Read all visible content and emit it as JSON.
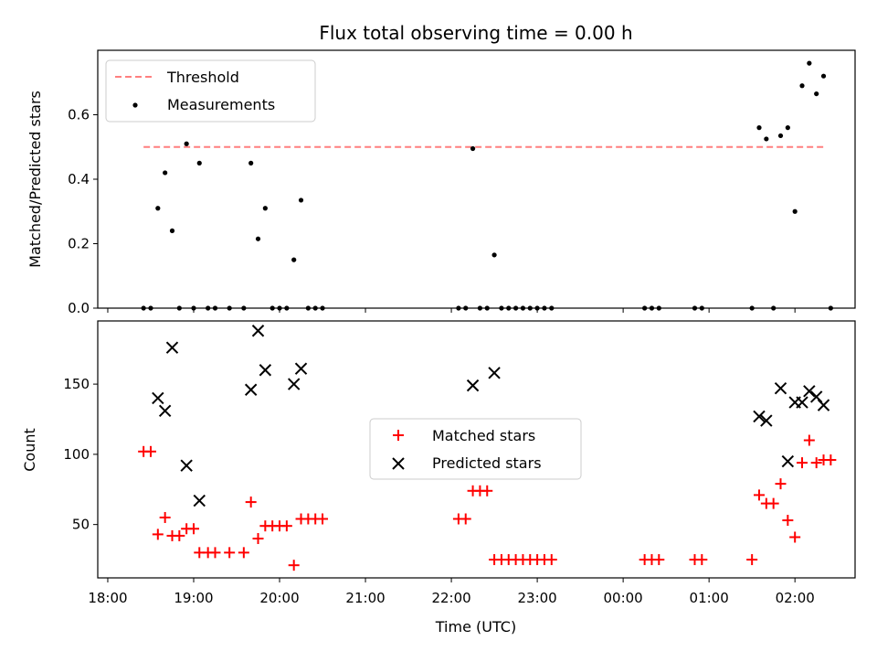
{
  "chart_data": [
    {
      "type": "scatter",
      "title": "Flux total observing time = 0.00 h",
      "xlabel": "",
      "ylabel": "Matched/Predicted stars",
      "ylim": [
        0,
        0.8
      ],
      "xlim": [
        "17:53",
        "02:42"
      ],
      "grid": false,
      "legend_position": "top-left",
      "yticks": [
        "0.0",
        "0.2",
        "0.4",
        "0.6"
      ],
      "threshold": {
        "name": "Threshold",
        "value": 0.5,
        "x_start": "18:25",
        "x_end": "02:20",
        "color": "#ff7f7f"
      },
      "series": [
        {
          "name": "Measurements",
          "color": "#000000",
          "points": [
            [
              "18:25",
              0
            ],
            [
              "18:30",
              0
            ],
            [
              "18:35",
              0.31
            ],
            [
              "18:40",
              0.42
            ],
            [
              "18:45",
              0.24
            ],
            [
              "18:50",
              0
            ],
            [
              "18:55",
              0.51
            ],
            [
              "19:00",
              0
            ],
            [
              "19:04",
              0.45
            ],
            [
              "19:10",
              0
            ],
            [
              "19:15",
              0
            ],
            [
              "19:25",
              0
            ],
            [
              "19:35",
              0
            ],
            [
              "19:40",
              0.45
            ],
            [
              "19:45",
              0.215
            ],
            [
              "19:50",
              0.31
            ],
            [
              "19:55",
              0
            ],
            [
              "20:00",
              0
            ],
            [
              "20:05",
              0
            ],
            [
              "20:10",
              0.15
            ],
            [
              "20:15",
              0.335
            ],
            [
              "20:20",
              0
            ],
            [
              "20:25",
              0
            ],
            [
              "20:30",
              0
            ],
            [
              "22:05",
              0
            ],
            [
              "22:10",
              0
            ],
            [
              "22:15",
              0.495
            ],
            [
              "22:20",
              0
            ],
            [
              "22:25",
              0
            ],
            [
              "22:30",
              0.165
            ],
            [
              "22:35",
              0
            ],
            [
              "22:40",
              0
            ],
            [
              "22:45",
              0
            ],
            [
              "22:50",
              0
            ],
            [
              "22:55",
              0
            ],
            [
              "23:00",
              0
            ],
            [
              "23:05",
              0
            ],
            [
              "23:10",
              0
            ],
            [
              "00:15",
              0
            ],
            [
              "00:20",
              0
            ],
            [
              "00:25",
              0
            ],
            [
              "00:50",
              0
            ],
            [
              "00:55",
              0
            ],
            [
              "01:30",
              0
            ],
            [
              "01:35",
              0.56
            ],
            [
              "01:40",
              0.525
            ],
            [
              "01:45",
              0
            ],
            [
              "01:50",
              0.535
            ],
            [
              "01:55",
              0.56
            ],
            [
              "02:00",
              0.3
            ],
            [
              "02:05",
              0.69
            ],
            [
              "02:10",
              0.76
            ],
            [
              "02:15",
              0.665
            ],
            [
              "02:20",
              0.72
            ],
            [
              "02:25",
              0
            ]
          ]
        }
      ]
    },
    {
      "type": "scatter",
      "title": "",
      "xlabel": "Time (UTC)",
      "ylabel": "Count",
      "ylim": [
        12,
        195
      ],
      "xlim": [
        "17:53",
        "02:42"
      ],
      "grid": false,
      "legend_position": "center",
      "xticks": [
        "18:00",
        "19:00",
        "20:00",
        "21:00",
        "22:00",
        "23:00",
        "00:00",
        "01:00",
        "02:00"
      ],
      "yticks": [
        "50",
        "100",
        "150"
      ],
      "series": [
        {
          "name": "Matched stars",
          "marker": "+",
          "color": "#ff0000",
          "points": [
            [
              "18:25",
              102
            ],
            [
              "18:30",
              102
            ],
            [
              "18:35",
              43
            ],
            [
              "18:40",
              55
            ],
            [
              "18:45",
              42
            ],
            [
              "18:50",
              42
            ],
            [
              "18:55",
              47
            ],
            [
              "19:00",
              47
            ],
            [
              "19:04",
              30
            ],
            [
              "19:10",
              30
            ],
            [
              "19:15",
              30
            ],
            [
              "19:25",
              30
            ],
            [
              "19:35",
              30
            ],
            [
              "19:40",
              66
            ],
            [
              "19:45",
              40
            ],
            [
              "19:50",
              49
            ],
            [
              "19:55",
              49
            ],
            [
              "20:00",
              49
            ],
            [
              "20:05",
              49
            ],
            [
              "20:10",
              21
            ],
            [
              "20:15",
              54
            ],
            [
              "20:20",
              54
            ],
            [
              "20:25",
              54
            ],
            [
              "20:30",
              54
            ],
            [
              "22:05",
              54
            ],
            [
              "22:10",
              54
            ],
            [
              "22:15",
              74
            ],
            [
              "22:20",
              74
            ],
            [
              "22:25",
              74
            ],
            [
              "22:30",
              25
            ],
            [
              "22:35",
              25
            ],
            [
              "22:40",
              25
            ],
            [
              "22:45",
              25
            ],
            [
              "22:50",
              25
            ],
            [
              "22:55",
              25
            ],
            [
              "23:00",
              25
            ],
            [
              "23:05",
              25
            ],
            [
              "23:10",
              25
            ],
            [
              "00:15",
              25
            ],
            [
              "00:20",
              25
            ],
            [
              "00:25",
              25
            ],
            [
              "00:50",
              25
            ],
            [
              "00:55",
              25
            ],
            [
              "01:30",
              25
            ],
            [
              "01:35",
              71
            ],
            [
              "01:40",
              65
            ],
            [
              "01:45",
              65
            ],
            [
              "01:50",
              79
            ],
            [
              "01:55",
              53
            ],
            [
              "02:00",
              41
            ],
            [
              "02:05",
              94
            ],
            [
              "02:10",
              110
            ],
            [
              "02:15",
              94
            ],
            [
              "02:20",
              96
            ],
            [
              "02:25",
              96
            ]
          ]
        },
        {
          "name": "Predicted stars",
          "marker": "x",
          "color": "#000000",
          "points": [
            [
              "18:35",
              140
            ],
            [
              "18:40",
              131
            ],
            [
              "18:45",
              176
            ],
            [
              "18:55",
              92
            ],
            [
              "19:04",
              67
            ],
            [
              "19:40",
              146
            ],
            [
              "19:45",
              188
            ],
            [
              "19:50",
              160
            ],
            [
              "20:10",
              150
            ],
            [
              "20:15",
              161
            ],
            [
              "22:15",
              149
            ],
            [
              "22:30",
              158
            ],
            [
              "01:35",
              127
            ],
            [
              "01:40",
              124
            ],
            [
              "01:50",
              147
            ],
            [
              "01:55",
              95
            ],
            [
              "02:00",
              137
            ],
            [
              "02:05",
              137
            ],
            [
              "02:10",
              145
            ],
            [
              "02:15",
              141
            ],
            [
              "02:20",
              135
            ]
          ]
        }
      ]
    }
  ]
}
